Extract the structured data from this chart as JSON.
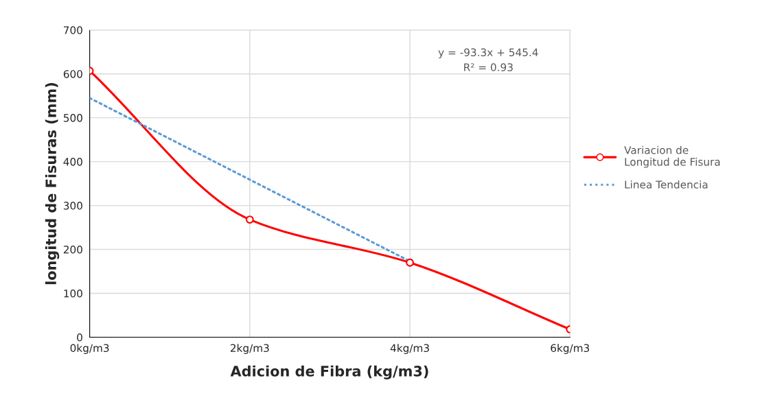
{
  "chart_data": {
    "type": "line",
    "xlabel": "Adicion de Fibra (kg/m3)",
    "ylabel": "longitud de Fisuras (mm)",
    "categories": [
      "0kg/m3",
      "2kg/m3",
      "4kg/m3",
      "6kg/m3"
    ],
    "ylim": [
      0,
      700
    ],
    "yticks": [
      0,
      100,
      200,
      300,
      400,
      500,
      600,
      700
    ],
    "grid": true,
    "legend": "right",
    "annotations": [
      "y = -93.3x + 545.4\nR² = 0.93"
    ],
    "series": [
      {
        "name": "Variacion de\nLongitud de Fisura",
        "color": "#ff0000",
        "values": [
          607,
          268,
          170,
          18
        ],
        "marker": "circle",
        "line_style": "solid"
      },
      {
        "name": "Linea Tendencia",
        "color": "#5b9bd5",
        "type": "line",
        "values": [
          545,
          359,
          173,
          null
        ],
        "marker": "none",
        "line_style": "dotted"
      }
    ]
  }
}
